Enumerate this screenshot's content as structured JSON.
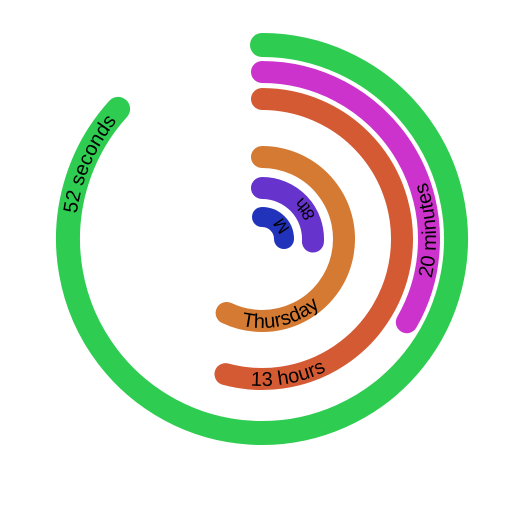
{
  "clock": {
    "rings": [
      {
        "id": "seconds",
        "label": "52 seconds",
        "color": "#2ECC50",
        "fraction": 0.867
      },
      {
        "id": "minutes",
        "label": "20 minutes",
        "color": "#CC33CC",
        "fraction": 0.333
      },
      {
        "id": "hours",
        "label": "13 hours",
        "color": "#D45A33",
        "fraction": 0.542
      },
      {
        "id": "weekday",
        "label": "Thursday",
        "color": "#D47A33",
        "fraction": 0.571
      },
      {
        "id": "date",
        "label": "8th",
        "color": "#6633CC",
        "fraction": 0.258
      },
      {
        "id": "month",
        "label": "M",
        "color": "#2233BB",
        "fraction": 0.25
      }
    ]
  }
}
